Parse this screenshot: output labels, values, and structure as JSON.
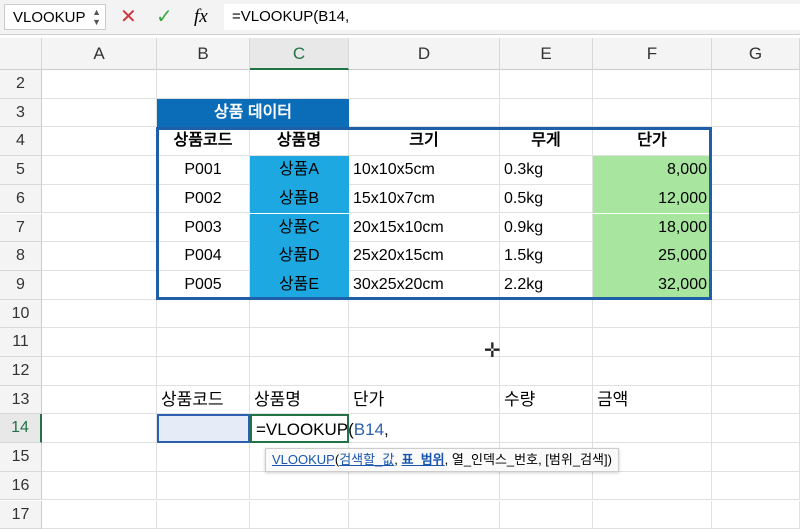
{
  "formula_bar": {
    "name_box": "VLOOKUP",
    "cancel_icon": "✕",
    "enter_icon": "✓",
    "fx_label": "fx",
    "formula": "=VLOOKUP(B14,"
  },
  "columns": [
    "A",
    "B",
    "C",
    "D",
    "E",
    "F",
    "G"
  ],
  "rows": [
    "2",
    "3",
    "4",
    "5",
    "6",
    "7",
    "8",
    "9",
    "10",
    "11",
    "12",
    "13",
    "14",
    "15",
    "16",
    "17"
  ],
  "table": {
    "title": "상품 데이터",
    "headers": [
      "상품코드",
      "상품명",
      "크기",
      "무게",
      "단가"
    ],
    "rows": [
      [
        "P001",
        "상품A",
        "10x10x5cm",
        "0.3kg",
        "8,000"
      ],
      [
        "P002",
        "상품B",
        "15x10x7cm",
        "0.5kg",
        "12,000"
      ],
      [
        "P003",
        "상품C",
        "20x15x10cm",
        "0.9kg",
        "18,000"
      ],
      [
        "P004",
        "상품D",
        "25x20x15cm",
        "1.5kg",
        "25,000"
      ],
      [
        "P005",
        "상품E",
        "30x25x20cm",
        "2.2kg",
        "32,000"
      ]
    ]
  },
  "lookup": {
    "headers": [
      "상품코드",
      "상품명",
      "단가",
      "수량",
      "금액"
    ],
    "c14": "=VLOOKUP(",
    "c14_ref": "B14",
    "c14_tail": ","
  },
  "tooltip": {
    "fn": "VLOOKUP",
    "open": "(",
    "arg1": "검색할_값",
    "sep": ", ",
    "arg2": "표_범위",
    "rest": ", 열_인덱스_번호, [범위_검색])"
  },
  "colors": {
    "title_fill": "#0b6db8",
    "name_fill": "#1ea8e2",
    "price_fill": "#a8e6a0",
    "table_border": "#1f5fa8",
    "active_col": "#217346"
  }
}
